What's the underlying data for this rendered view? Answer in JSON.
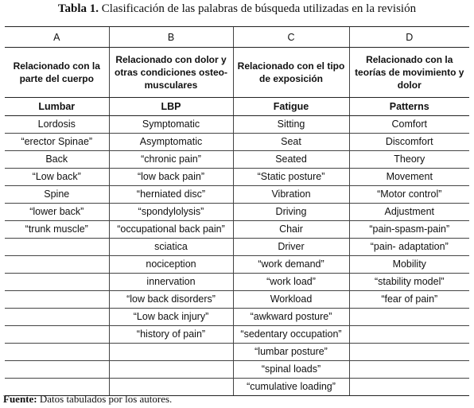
{
  "caption": {
    "label": "Tabla 1.",
    "text": "Clasificación de las palabras de  búsqueda utilizadas en la revisión"
  },
  "columns": [
    {
      "letter": "A",
      "desc": "Relacionado con la parte del cuerpo",
      "head": "Lumbar"
    },
    {
      "letter": "B",
      "desc": "Relacionado con dolor y otras condiciones osteo-musculares",
      "head": "LBP"
    },
    {
      "letter": "C",
      "desc": "Relacionado con el tipo de exposición",
      "head": "Fatigue"
    },
    {
      "letter": "D",
      "desc": "Relacionado con la teorías de movimiento y dolor",
      "head": "Patterns"
    }
  ],
  "rows": [
    [
      "Lordosis",
      "Symptomatic",
      "Sitting",
      "Comfort"
    ],
    [
      "“erector Spinae”",
      "Asymptomatic",
      "Seat",
      "Discomfort"
    ],
    [
      "Back",
      "“chronic pain”",
      "Seated",
      "Theory"
    ],
    [
      "“Low back”",
      "“low back pain”",
      "“Static posture”",
      "Movement"
    ],
    [
      "Spine",
      "“herniated disc”",
      "Vibration",
      "“Motor control”"
    ],
    [
      "“lower back”",
      "“spondylolysis”",
      "Driving",
      "Adjustment"
    ],
    [
      "“trunk muscle”",
      "“occupational back pain”",
      "Chair",
      "“pain-spasm-pain”"
    ],
    [
      "",
      "sciatica",
      "Driver",
      "“pain- adaptation”"
    ],
    [
      "",
      "nociception",
      "“work demand”",
      "Mobility"
    ],
    [
      "",
      "innervation",
      "“work load”",
      "“stability model”"
    ],
    [
      "",
      "“low back disorders”",
      "Workload",
      "“fear of pain”"
    ],
    [
      "",
      "“Low back injury”",
      "“awkward posture”",
      ""
    ],
    [
      "",
      "“history of pain”",
      "“sedentary occupation”",
      ""
    ],
    [
      "",
      "",
      "“lumbar posture”",
      ""
    ],
    [
      "",
      "",
      "“spinal loads”",
      ""
    ],
    [
      "",
      "",
      "“cumulative loading”",
      ""
    ]
  ],
  "source": {
    "label": "Fuente:",
    "text": "Datos tabulados por los autores."
  }
}
